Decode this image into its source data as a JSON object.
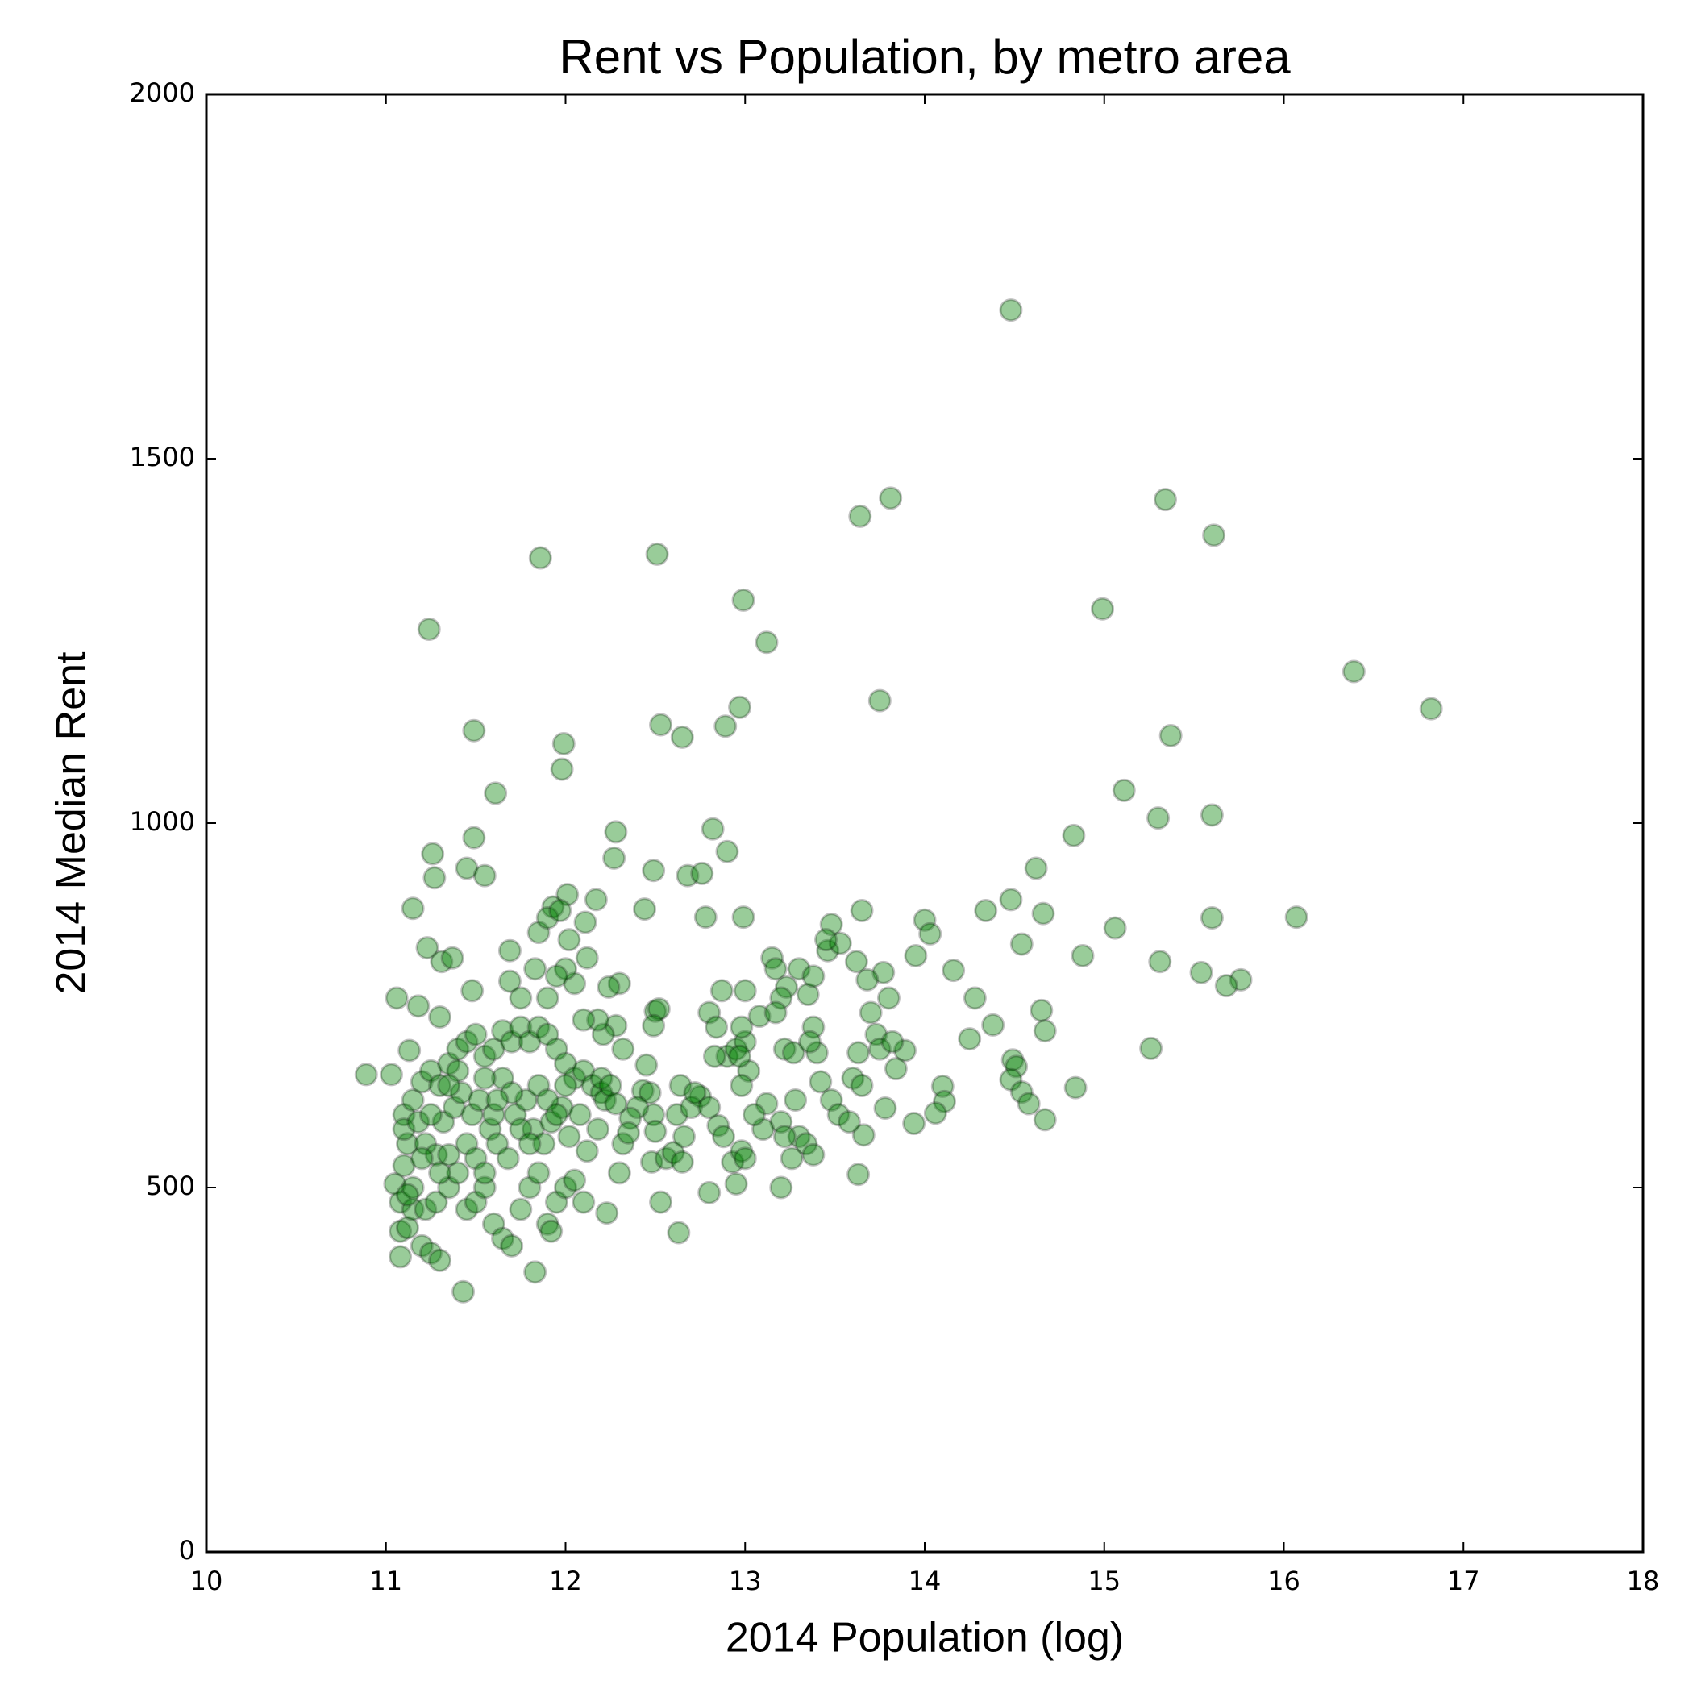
{
  "chart_data": {
    "type": "scatter",
    "title": "Rent vs Population, by metro area",
    "x_label": "2014 Population (log)",
    "y_label": "2014 Median Rent",
    "color": "#008000",
    "alpha": 0.4,
    "xlim": [
      10,
      18
    ],
    "xticks": [
      10,
      11,
      12,
      13,
      14,
      15,
      16,
      17,
      18
    ],
    "ylim": [
      0,
      2000
    ],
    "yticks": [
      0,
      500,
      1000,
      1500,
      2000
    ],
    "x": [
      14.48,
      13.81,
      13.64,
      15.34,
      15.61,
      12.51,
      11.86,
      12.99,
      14.99,
      11.24,
      13.12,
      16.39,
      13.75,
      16.82,
      12.97,
      12.53,
      12.89,
      11.49,
      15.37,
      12.65,
      11.99,
      11.98,
      11.61,
      15.11,
      15.3,
      15.6,
      12.28,
      12.82,
      14.83,
      11.49,
      11.26,
      12.9,
      12.27,
      14.62,
      11.45,
      12.49,
      12.68,
      12.76,
      11.55,
      11.27,
      14.48,
      12.01,
      12.17,
      11.93,
      12.44,
      11.15,
      13.65,
      14.34,
      14.66,
      16.07,
      15.6,
      12.99,
      12.78,
      14.0,
      13.48,
      15.06,
      14.03,
      12.11,
      11.23,
      14.54,
      14.88,
      15.31,
      13.95,
      14.16,
      15.54,
      15.76,
      15.68,
      14.28,
      14.38,
      14.65,
      14.67,
      15.26,
      14.25,
      14.49,
      14.51,
      14.48,
      14.84,
      14.54,
      14.58,
      14.67,
      14.1,
      14.11,
      14.06,
      13.94,
      13.89,
      13.84,
      13.78,
      13.63,
      13.66,
      13.2,
      12.53,
      12.63,
      12.8,
      11.43,
      11.83,
      11.08,
      10.89,
      11.03,
      11.06,
      11.13,
      11.18,
      11.3,
      11.48,
      11.31,
      11.37,
      11.69,
      11.69,
      12.3,
      12.24,
      12.5,
      12.52,
      12.49,
      12.28,
      12.21,
      12.32,
      12.45,
      12.43,
      12.47,
      12.49,
      12.4,
      12.36,
      12.5,
      12.32,
      12.35,
      12.48,
      12.56,
      12.6,
      12.3,
      12.23,
      12.66,
      12.65,
      12.62,
      12.64,
      12.75,
      12.7,
      12.72,
      12.8,
      12.84,
      12.87,
      12.9,
      12.95,
      13.0,
      12.98,
      13.02,
      13.08,
      12.98,
      12.85,
      12.88,
      12.93,
      12.98,
      13.0,
      12.95,
      13.0,
      13.15,
      13.17,
      13.23,
      13.2,
      13.17,
      13.22,
      13.27,
      13.3,
      13.35,
      13.38,
      13.4,
      13.36,
      13.42,
      13.48,
      13.52,
      13.46,
      13.58,
      13.6,
      13.63,
      13.65,
      13.7,
      13.73,
      13.75,
      13.8,
      13.82,
      13.77,
      13.68,
      13.62,
      13.53,
      13.45,
      13.38,
      13.3,
      13.34,
      13.38,
      13.2,
      13.12,
      13.28,
      13.26,
      13.1,
      13.22,
      13.05,
      12.97,
      12.83,
      12.8,
      11.05,
      11.08,
      11.1,
      11.12,
      11.1,
      11.15,
      11.2,
      11.25,
      11.3,
      11.35,
      11.4,
      11.45,
      11.5,
      11.55,
      11.6,
      11.65,
      11.7,
      11.75,
      11.8,
      11.85,
      11.9,
      11.95,
      12.0,
      12.05,
      12.1,
      12.15,
      12.2,
      11.08,
      11.12,
      11.15,
      11.2,
      11.25,
      11.3,
      11.22,
      11.28,
      11.35,
      11.4,
      11.45,
      11.5,
      11.55,
      11.6,
      11.65,
      11.7,
      11.75,
      11.8,
      11.85,
      11.9,
      11.92,
      11.95,
      12.0,
      12.05,
      12.1,
      11.1,
      11.18,
      11.22,
      11.28,
      11.32,
      11.38,
      11.42,
      11.48,
      11.52,
      11.58,
      11.62,
      11.68,
      11.72,
      11.78,
      11.82,
      11.88,
      11.92,
      11.98,
      12.02,
      12.08,
      12.12,
      12.18,
      12.22,
      11.3,
      11.35,
      11.45,
      11.5,
      11.55,
      11.6,
      11.65,
      11.7,
      11.75,
      11.8,
      11.85,
      11.9,
      11.95,
      12.0,
      12.05,
      12.0,
      11.95,
      11.9,
      11.85,
      11.9,
      11.97,
      12.02,
      12.12,
      12.18,
      12.1,
      12.2,
      12.25,
      12.28,
      11.83,
      11.75,
      11.62,
      11.55,
      11.4,
      11.35,
      11.25,
      11.2,
      11.15,
      11.12
    ],
    "values": [
      1704,
      1446,
      1421,
      1444,
      1395,
      1369,
      1364,
      1306,
      1294,
      1266,
      1248,
      1208,
      1168,
      1157,
      1159,
      1135,
      1133,
      1127,
      1120,
      1118,
      1109,
      1074,
      1041,
      1045,
      1007,
      1011,
      988,
      992,
      983,
      980,
      958,
      961,
      952,
      938,
      938,
      935,
      928,
      931,
      928,
      925,
      895,
      902,
      895,
      885,
      882,
      883,
      880,
      880,
      876,
      871,
      870,
      871,
      871,
      867,
      861,
      856,
      848,
      864,
      829,
      834,
      818,
      810,
      818,
      798,
      795,
      785,
      777,
      760,
      723,
      743,
      715,
      691,
      704,
      675,
      666,
      648,
      637,
      631,
      615,
      593,
      639,
      618,
      602,
      588,
      688,
      663,
      609,
      518,
      572,
      500,
      480,
      438,
      493,
      357,
      384,
      405,
      655,
      655,
      760,
      688,
      749,
      734,
      770,
      810,
      815,
      825,
      783,
      780,
      775,
      742,
      745,
      722,
      722,
      710,
      690,
      668,
      633,
      630,
      600,
      610,
      595,
      577,
      560,
      575,
      535,
      540,
      548,
      520,
      465,
      570,
      535,
      600,
      640,
      625,
      610,
      630,
      740,
      720,
      770,
      680,
      690,
      700,
      720,
      660,
      735,
      640,
      585,
      570,
      535,
      550,
      540,
      505,
      770,
      815,
      800,
      775,
      760,
      740,
      690,
      685,
      800,
      765,
      720,
      685,
      700,
      645,
      620,
      600,
      825,
      590,
      650,
      685,
      640,
      740,
      710,
      690,
      760,
      700,
      795,
      785,
      810,
      835,
      840,
      790,
      570,
      560,
      545,
      590,
      615,
      620,
      540,
      580,
      570,
      600,
      680,
      680,
      610,
      505,
      480,
      530,
      560,
      600,
      620,
      645,
      660,
      640,
      670,
      690,
      700,
      710,
      680,
      690,
      715,
      700,
      720,
      700,
      720,
      710,
      690,
      670,
      650,
      660,
      640,
      630,
      440,
      445,
      470,
      420,
      410,
      400,
      470,
      480,
      500,
      520,
      470,
      480,
      500,
      450,
      430,
      420,
      470,
      500,
      520,
      450,
      440,
      480,
      500,
      510,
      480,
      580,
      590,
      560,
      545,
      590,
      610,
      630,
      600,
      620,
      580,
      560,
      540,
      600,
      620,
      580,
      560,
      590,
      610,
      570,
      600,
      550,
      580,
      620,
      520,
      545,
      560,
      540,
      520,
      600,
      650,
      630,
      580,
      560,
      640,
      620,
      600,
      640,
      780,
      800,
      790,
      760,
      850,
      870,
      880,
      840,
      815,
      730,
      730,
      650,
      640,
      615,
      800,
      760,
      620,
      650,
      660,
      640,
      600,
      540,
      500,
      490
    ]
  }
}
